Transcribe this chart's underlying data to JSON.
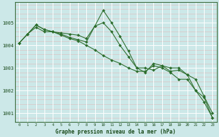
{
  "title": "Graphe pression niveau de la mer (hPa)",
  "background_color": "#cce8e8",
  "grid_color": "#ffffff",
  "grid_minor_color": "#e8c8c8",
  "line_color": "#2d6e2d",
  "marker_color": "#2d6e2d",
  "xlim": [
    -0.5,
    23.5
  ],
  "ylim": [
    1000.6,
    1005.9
  ],
  "yticks": [
    1001,
    1002,
    1003,
    1004,
    1005
  ],
  "xticks": [
    0,
    1,
    2,
    3,
    4,
    5,
    6,
    7,
    8,
    9,
    10,
    11,
    12,
    13,
    14,
    15,
    16,
    17,
    18,
    19,
    20,
    21,
    22,
    23
  ],
  "series": [
    [
      1004.1,
      1004.5,
      1004.9,
      1004.7,
      1004.6,
      1004.55,
      1004.5,
      1004.45,
      1004.3,
      1004.85,
      1005.0,
      1004.6,
      1004.0,
      1003.5,
      1003.0,
      1003.0,
      1002.9,
      1003.1,
      1002.85,
      1002.9,
      1002.7,
      1002.5,
      1001.75,
      1001.0
    ],
    [
      1004.1,
      1004.5,
      1004.9,
      1004.7,
      1004.6,
      1004.5,
      1004.35,
      1004.25,
      1004.15,
      1004.85,
      1005.55,
      1005.0,
      1004.4,
      1003.75,
      1003.0,
      1002.8,
      1003.2,
      1003.1,
      1003.0,
      1003.0,
      1002.7,
      1002.0,
      1001.7,
      1000.8
    ],
    [
      1004.1,
      1004.5,
      1004.8,
      1004.6,
      1004.6,
      1004.45,
      1004.3,
      1004.2,
      1004.0,
      1003.8,
      1003.55,
      1003.35,
      1003.2,
      1003.0,
      1002.85,
      1002.85,
      1003.1,
      1003.0,
      1002.8,
      1002.5,
      1002.5,
      1002.0,
      1001.5,
      1000.8
    ]
  ]
}
